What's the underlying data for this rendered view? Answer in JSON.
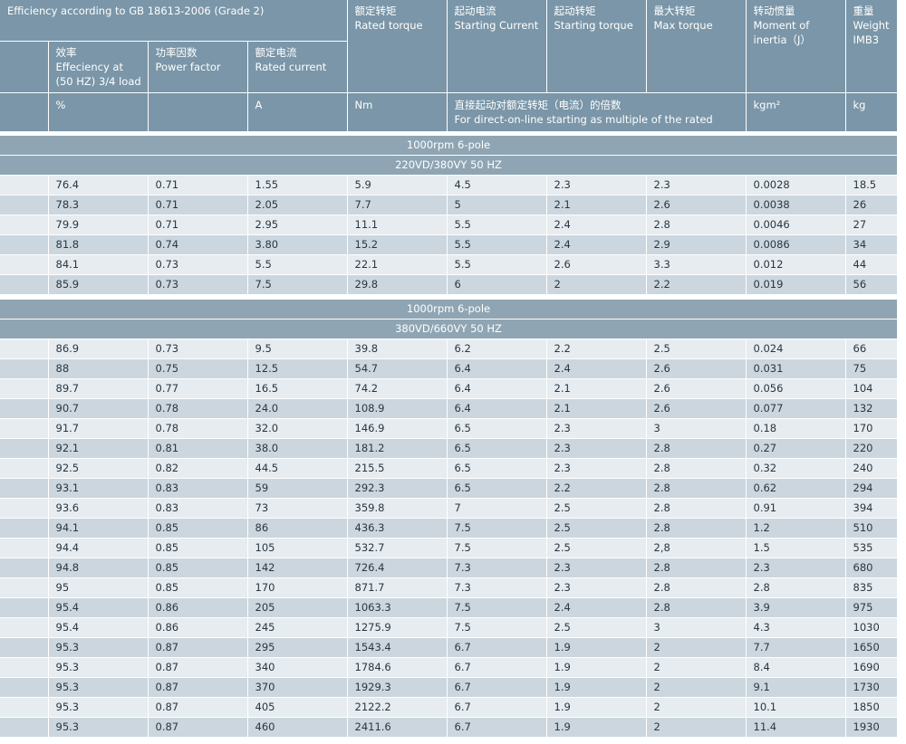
{
  "header": {
    "title": "Efficiency according to GB 18613-2006 (Grade 2)",
    "efficiency": "效率\nEffeciency at\n(50 HZ) 3/4 load",
    "power_factor": "功率因数\nPower factor",
    "rated_current": "额定电流\nRated current",
    "rated_torque": "额定转矩\nRated torque",
    "starting_current": "起动电流\nStarting Current",
    "starting_torque": "起动转矩\nStarting torque",
    "max_torque": "最大转矩\nMax torque",
    "inertia": "转动惯量\nMoment  of\ninertia（J）",
    "weight": "重量\nWeight\nIMB3",
    "unit_efficiency": "%",
    "unit_current": "A",
    "unit_torque": "Nm",
    "multiple_note": "直接起动对额定转矩（电流）的倍数\nFor direct-on-line starting as multiple of the rated",
    "unit_inertia": "kgm²",
    "unit_weight": "kg"
  },
  "sections": [
    {
      "speed": "1000rpm  6-pole",
      "voltage": "220VD/380VY  50 HZ",
      "rows": [
        [
          "76.4",
          "0.71",
          "1.55",
          "5.9",
          "4.5",
          "2.3",
          "2.3",
          "0.0028",
          "18.5"
        ],
        [
          "78.3",
          "0.71",
          "2.05",
          "7.7",
          "5",
          "2.1",
          "2.6",
          "0.0038",
          "26"
        ],
        [
          "79.9",
          "0.71",
          "2.95",
          "11.1",
          "5.5",
          "2.4",
          "2.8",
          "0.0046",
          "27"
        ],
        [
          "81.8",
          "0.74",
          "3.80",
          "15.2",
          "5.5",
          "2.4",
          "2.9",
          "0.0086",
          "34"
        ],
        [
          "84.1",
          "0.73",
          "5.5",
          "22.1",
          "5.5",
          "2.6",
          "3.3",
          "0.012",
          "44"
        ],
        [
          "85.9",
          "0.73",
          "7.5",
          "29.8",
          "6",
          "2",
          "2.2",
          "0.019",
          "56"
        ]
      ]
    },
    {
      "speed": "1000rpm  6-pole",
      "voltage": "380VD/660VY  50 HZ",
      "rows": [
        [
          "86.9",
          "0.73",
          "9.5",
          "39.8",
          "6.2",
          "2.2",
          "2.5",
          "0.024",
          "66"
        ],
        [
          "88",
          "0.75",
          "12.5",
          "54.7",
          "6.4",
          "2.4",
          "2.6",
          "0.031",
          "75"
        ],
        [
          "89.7",
          "0.77",
          "16.5",
          "74.2",
          "6.4",
          "2.1",
          "2.6",
          "0.056",
          "104"
        ],
        [
          "90.7",
          "0.78",
          "24.0",
          "108.9",
          "6.4",
          "2.1",
          "2.6",
          "0.077",
          "132"
        ],
        [
          "91.7",
          "0.78",
          "32.0",
          "146.9",
          "6.5",
          "2.3",
          "3",
          "0.18",
          "170"
        ],
        [
          "92.1",
          "0.81",
          "38.0",
          "181.2",
          "6.5",
          "2.3",
          "2.8",
          "0.27",
          "220"
        ],
        [
          "92.5",
          "0.82",
          "44.5",
          "215.5",
          "6.5",
          "2.3",
          "2.8",
          "0.32",
          "240"
        ],
        [
          "93.1",
          "0.83",
          "59",
          "292.3",
          "6.5",
          "2.2",
          "2.8",
          "0.62",
          "294"
        ],
        [
          "93.6",
          "0.83",
          "73",
          "359.8",
          "7",
          "2.5",
          "2.8",
          "0.91",
          "394"
        ],
        [
          "94.1",
          "0.85",
          "86",
          "436.3",
          "7.5",
          "2.5",
          "2.8",
          "1.2",
          "510"
        ],
        [
          "94.4",
          "0.85",
          "105",
          "532.7",
          "7.5",
          "2.5",
          "2,8",
          "1.5",
          "535"
        ],
        [
          "94.8",
          "0.85",
          "142",
          "726.4",
          "7.3",
          "2.3",
          "2.8",
          "2.3",
          "680"
        ],
        [
          "95",
          "0.85",
          "170",
          "871.7",
          "7.3",
          "2.3",
          "2.8",
          "2.8",
          "835"
        ],
        [
          "95.4",
          "0.86",
          "205",
          "1063.3",
          "7.5",
          "2.4",
          "2.8",
          "3.9",
          "975"
        ],
        [
          "95.4",
          "0.86",
          "245",
          "1275.9",
          "7.5",
          "2.5",
          "3",
          "4.3",
          "1030"
        ],
        [
          "95.3",
          "0.87",
          "295",
          "1543.4",
          "6.7",
          "1.9",
          "2",
          "7.7",
          "1650"
        ],
        [
          "95.3",
          "0.87",
          "340",
          "1784.6",
          "6.7",
          "1.9",
          "2",
          "8.4",
          "1690"
        ],
        [
          "95.3",
          "0.87",
          "370",
          "1929.3",
          "6.7",
          "1.9",
          "2",
          "9.1",
          "1730"
        ],
        [
          "95.3",
          "0.87",
          "405",
          "2122.2",
          "6.7",
          "1.9",
          "2",
          "10.1",
          "1850"
        ],
        [
          "95.3",
          "0.87",
          "460",
          "2411.6",
          "6.7",
          "1.9",
          "2",
          "11.4",
          "1930"
        ]
      ]
    }
  ]
}
